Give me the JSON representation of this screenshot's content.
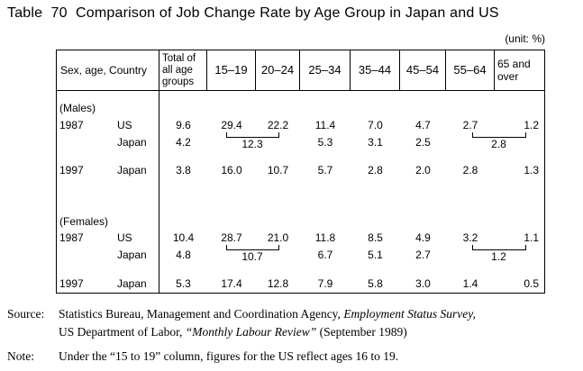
{
  "title": "Table  70  Comparison of Job Change Rate by Age Group in Japan and US",
  "unit_label": "(unit: %)",
  "table": {
    "headers": [
      "Sex, age, Country",
      "Total of all age groups",
      "15–19",
      "20–24",
      "25–34",
      "35–44",
      "45–54",
      "55–64",
      "65 and over"
    ],
    "males": {
      "label": "(Males)",
      "us1987": {
        "year": "1987",
        "country": "US",
        "v": [
          "9.6",
          "29.4",
          "22.2",
          "11.4",
          "7.0",
          "4.7",
          "2.7",
          "1.2"
        ]
      },
      "japan1987": {
        "country": "Japan",
        "total": "4.2",
        "bracket_15_24": "12.3",
        "v25_34": "5.3",
        "v35_44": "3.1",
        "v45_54": "2.5",
        "bracket_55_over": "2.8"
      },
      "japan1997": {
        "year": "1997",
        "country": "Japan",
        "v": [
          "3.8",
          "16.0",
          "10.7",
          "5.7",
          "2.8",
          "2.0",
          "2.8",
          "1.3"
        ]
      }
    },
    "females": {
      "label": "(Females)",
      "us1987": {
        "year": "1987",
        "country": "US",
        "v": [
          "10.4",
          "28.7",
          "21.0",
          "11.8",
          "8.5",
          "4.9",
          "3.2",
          "1.1"
        ]
      },
      "japan1987": {
        "country": "Japan",
        "total": "4.8",
        "bracket_15_24": "10.7",
        "v25_34": "6.7",
        "v35_44": "5.1",
        "v45_54": "2.7",
        "bracket_55_over": "1.2"
      },
      "japan1997": {
        "year": "1997",
        "country": "Japan",
        "v": [
          "5.3",
          "17.4",
          "12.8",
          "7.9",
          "5.8",
          "3.0",
          "1.4",
          "0.5"
        ]
      }
    }
  },
  "source": {
    "label": "Source:",
    "l1a": "Statistics Bureau, Management and Coordination Agency, ",
    "l1b": "Employment Status Survey,",
    "l2a": "US Department of Labor, ",
    "l2b": "“Monthly Labour Review”",
    "l2c": " (September 1989)"
  },
  "note": {
    "label": "Note:",
    "text": "Under the “15 to 19” column, figures for the US reflect ages 16 to 19."
  }
}
